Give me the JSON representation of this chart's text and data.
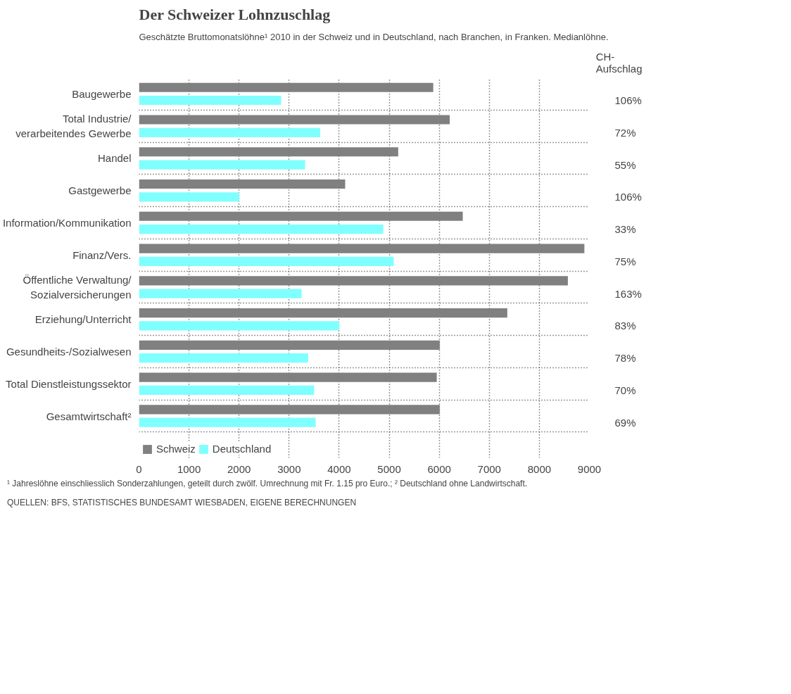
{
  "chart_data": {
    "type": "bar",
    "orientation": "horizontal",
    "title": "Der Schweizer Lohnzuschlag",
    "subtitle": "Geschätzte Bruttomonatslöhne¹ 2010 in der Schweiz und in Deutschland, nach Branchen, in Franken. Medianlöhne.",
    "categories": [
      "Baugewerbe",
      "Total Industrie/\nverarbeitendes Gewerbe",
      "Handel",
      "Gastgewerbe",
      "Information/Kommunikation",
      "Finanz/Vers.",
      "Öffentliche Verwaltung/\nSozialversicherungen",
      "Erziehung/Unterricht",
      "Gesundheits-/Sozialwesen",
      "Total Dienstleistungssektor",
      "Gesamtwirtschaft²"
    ],
    "series": [
      {
        "name": "Schweiz",
        "color": "#808080",
        "values": [
          5880,
          6210,
          5180,
          4120,
          6470,
          8900,
          8570,
          7360,
          6010,
          5950,
          6010
        ]
      },
      {
        "name": "Deutschland",
        "color": "#80ffff",
        "values": [
          2840,
          3620,
          3320,
          2000,
          4880,
          5090,
          3250,
          4000,
          3380,
          3500,
          3530
        ]
      }
    ],
    "xlim": [
      0,
      9000
    ],
    "xticks": [
      0,
      1000,
      2000,
      3000,
      4000,
      5000,
      6000,
      7000,
      8000,
      9000
    ],
    "grid": true,
    "legend": "bottom left",
    "annotations": [
      "CH-\nAufschlag",
      "106%",
      "72%",
      "55%",
      "106%",
      "33%",
      "75%",
      "163%",
      "83%",
      "78%",
      "70%",
      "69%",
      "¹ Jahreslöhne einschliesslich Sonderzahlungen, geteilt durch zwölf. Umrechnung mit Fr. 1.15 pro Euro.; ² Deutschland ohne Landwirtschaft.",
      "QUELLEN: BFS, STATISTISCHES BUNDESAMT WIESBADEN, EIGENE BERECHNUNGEN"
    ]
  }
}
